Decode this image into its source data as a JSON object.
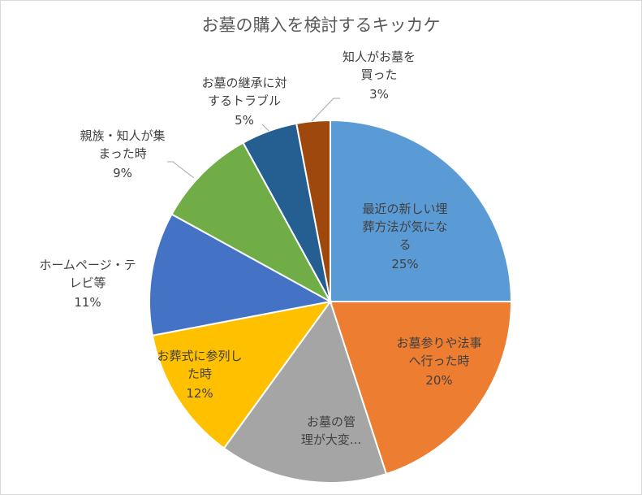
{
  "chart_data": {
    "type": "pie",
    "title": "お墓の購入を検討するキッカケ",
    "start": "12 o'clock, clockwise",
    "slices": [
      {
        "label_lines": [
          "最近の新しい埋",
          "葬方法が気にな",
          "る"
        ],
        "value": 25,
        "pct": "25%",
        "color": "#5B9BD5"
      },
      {
        "label_lines": [
          "お墓参りや法事",
          "へ行った時"
        ],
        "value": 20,
        "pct": "20%",
        "color": "#ED7D31"
      },
      {
        "label_lines": [
          "お墓の管",
          "理が大変..."
        ],
        "value": 15,
        "pct": "",
        "color": "#A5A5A5"
      },
      {
        "label_lines": [
          "お葬式に参列し",
          "た時"
        ],
        "value": 12,
        "pct": "12%",
        "color": "#FFC000"
      },
      {
        "label_lines": [
          "ホームページ・テ",
          "レビ等"
        ],
        "value": 11,
        "pct": "11%",
        "color": "#4472C4"
      },
      {
        "label_lines": [
          "親族・知人が集",
          "まった時"
        ],
        "value": 9,
        "pct": "9%",
        "color": "#70AD47"
      },
      {
        "label_lines": [
          "お墓の継承に対",
          "するトラブル"
        ],
        "value": 5,
        "pct": "5%",
        "color": "#255E91"
      },
      {
        "label_lines": [
          "知人がお墓を",
          "買った"
        ],
        "value": 3,
        "pct": "3%",
        "color": "#9E480E"
      }
    ]
  }
}
